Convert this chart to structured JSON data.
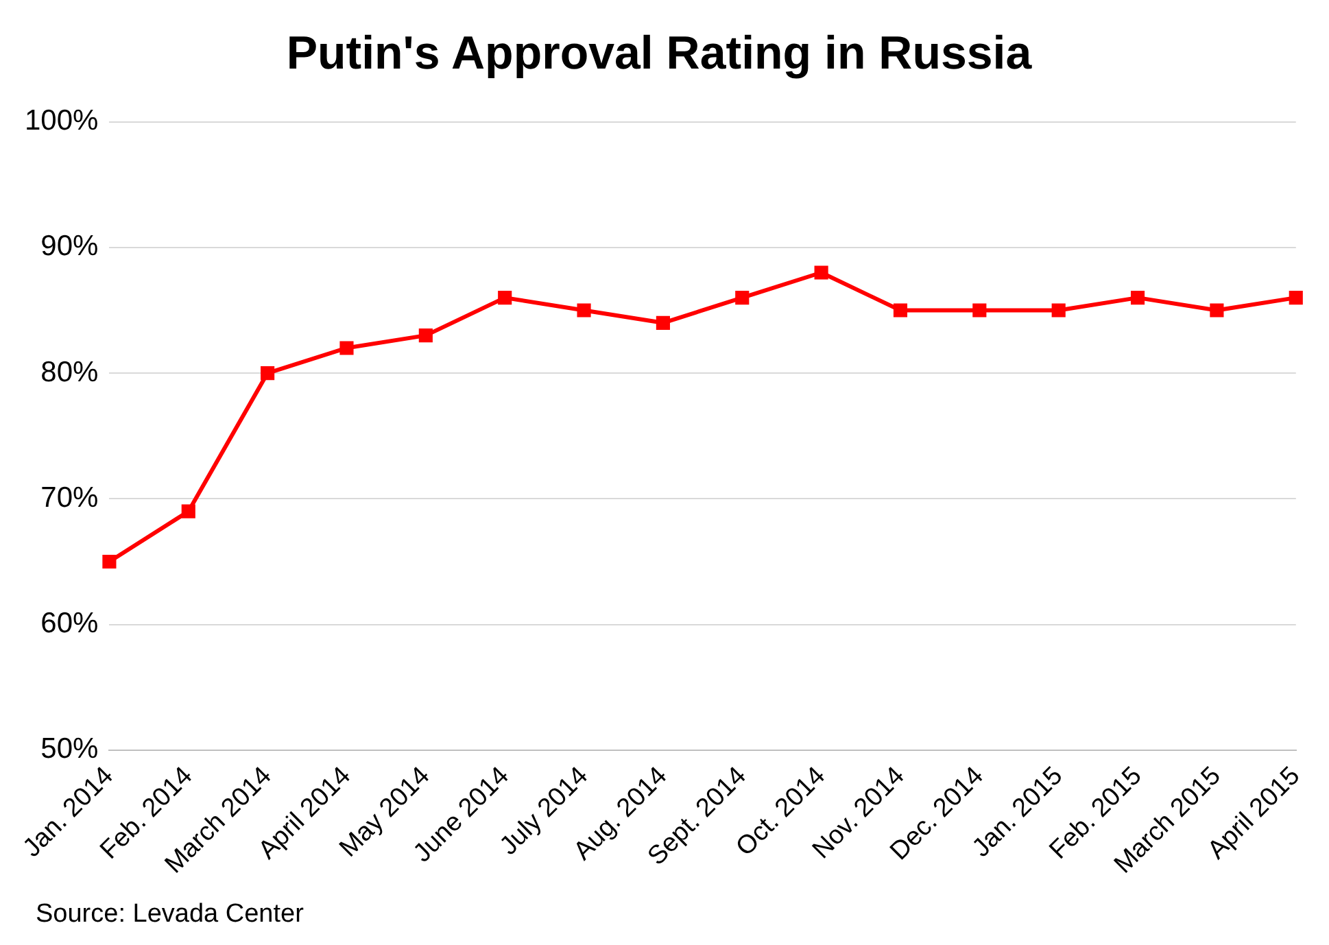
{
  "chart_data": {
    "type": "line",
    "title": "Putin's Approval Rating in Russia",
    "categories": [
      "Jan. 2014",
      "Feb. 2014",
      "March 2014",
      "April 2014",
      "May 2014",
      "June 2014",
      "July 2014",
      "Aug. 2014",
      "Sept. 2014",
      "Oct. 2014",
      "Nov. 2014",
      "Dec. 2014",
      "Jan. 2015",
      "Feb. 2015",
      "March 2015",
      "April 2015"
    ],
    "series": [
      {
        "color": "#ff0000",
        "values": [
          65,
          69,
          80,
          82,
          83,
          86,
          85,
          84,
          86,
          88,
          85,
          85,
          85,
          86,
          85,
          86
        ]
      }
    ],
    "ylim": [
      50,
      100
    ],
    "yticks": [
      {
        "value": 50,
        "label": "50%"
      },
      {
        "value": 60,
        "label": "60%"
      },
      {
        "value": 70,
        "label": "70%"
      },
      {
        "value": 80,
        "label": "80%"
      },
      {
        "value": 90,
        "label": "90%"
      },
      {
        "value": 100,
        "label": "100%"
      }
    ],
    "grid": "y",
    "legend": false,
    "marker": "square",
    "line_style": "solid",
    "annotations": [
      "Source: Levada Center"
    ]
  }
}
